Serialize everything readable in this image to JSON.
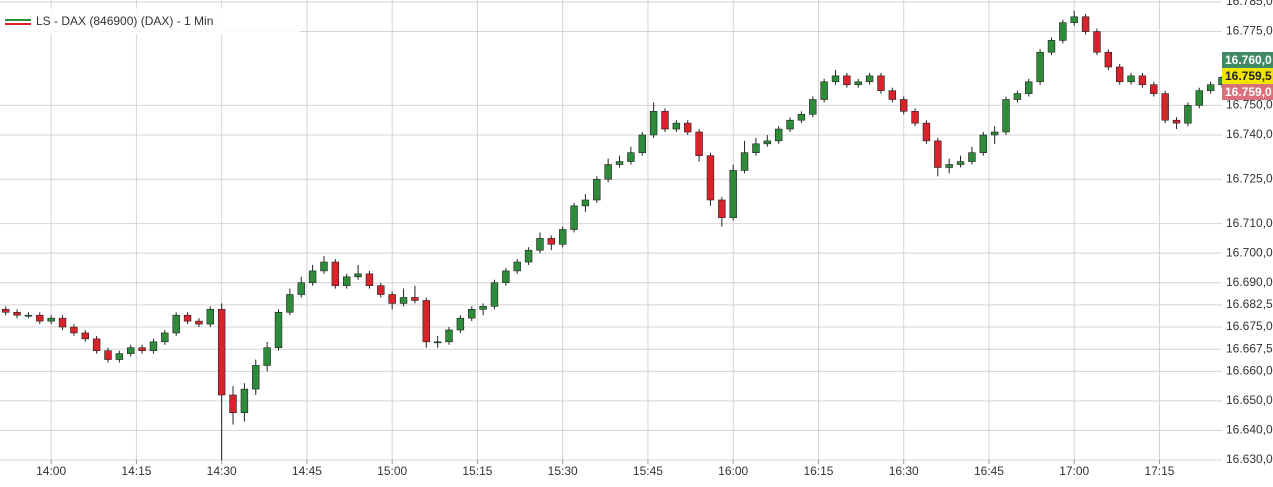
{
  "chart_data": {
    "type": "candlestick",
    "legend": "LS - DAX (846900) (DAX) - 1 Min",
    "up_color": "#2e8b3a",
    "down_color": "#d8232a",
    "grid": true,
    "xlim": [
      "13:51",
      "17:26"
    ],
    "xticks": [
      "14:00",
      "14:15",
      "14:30",
      "14:45",
      "15:00",
      "15:15",
      "15:30",
      "15:45",
      "16:00",
      "16:15",
      "16:30",
      "16:45",
      "17:00",
      "17:15"
    ],
    "ylim": [
      16630,
      16785
    ],
    "yticks": [
      {
        "value": 16630,
        "label": "16.630,0"
      },
      {
        "value": 16640,
        "label": "16.640,0"
      },
      {
        "value": 16650,
        "label": "16.650,0"
      },
      {
        "value": 16660,
        "label": "16.660,0"
      },
      {
        "value": 16667.5,
        "label": "16.667,5"
      },
      {
        "value": 16675,
        "label": "16.675,0"
      },
      {
        "value": 16682.5,
        "label": "16.682,5"
      },
      {
        "value": 16690,
        "label": "16.690,0"
      },
      {
        "value": 16700,
        "label": "16.700,0"
      },
      {
        "value": 16710,
        "label": "16.710,0"
      },
      {
        "value": 16725,
        "label": "16.725,0"
      },
      {
        "value": 16740,
        "label": "16.740,0"
      },
      {
        "value": 16750,
        "label": "16.750,0"
      },
      {
        "value": 16775,
        "label": "16.775,0"
      },
      {
        "value": 16785,
        "label": "16.785,0"
      }
    ],
    "price_labels": [
      {
        "value": 16760,
        "label": "16.760,0",
        "color": "#3d8a63",
        "text_color": "#ffffff"
      },
      {
        "value": 16759.5,
        "label": "16.759,5",
        "color": "#f2e600",
        "text_color": "#222222"
      },
      {
        "value": 16759,
        "label": "16.759,0",
        "color": "#d9707a",
        "text_color": "#ffffff"
      }
    ],
    "x": [
      "13:52",
      "13:54",
      "13:56",
      "13:58",
      "14:00",
      "14:02",
      "14:04",
      "14:06",
      "14:08",
      "14:10",
      "14:12",
      "14:14",
      "14:16",
      "14:18",
      "14:20",
      "14:22",
      "14:24",
      "14:26",
      "14:28",
      "14:30",
      "14:32",
      "14:34",
      "14:36",
      "14:38",
      "14:40",
      "14:42",
      "14:44",
      "14:46",
      "14:48",
      "14:50",
      "14:52",
      "14:54",
      "14:56",
      "14:58",
      "15:00",
      "15:02",
      "15:04",
      "15:06",
      "15:08",
      "15:10",
      "15:12",
      "15:14",
      "15:16",
      "15:18",
      "15:20",
      "15:22",
      "15:24",
      "15:26",
      "15:28",
      "15:30",
      "15:32",
      "15:34",
      "15:36",
      "15:38",
      "15:40",
      "15:42",
      "15:44",
      "15:46",
      "15:48",
      "15:50",
      "15:52",
      "15:54",
      "15:56",
      "15:58",
      "16:00",
      "16:02",
      "16:04",
      "16:06",
      "16:08",
      "16:10",
      "16:12",
      "16:14",
      "16:16",
      "16:18",
      "16:20",
      "16:22",
      "16:24",
      "16:26",
      "16:28",
      "16:30",
      "16:32",
      "16:34",
      "16:36",
      "16:38",
      "16:40",
      "16:42",
      "16:44",
      "16:46",
      "16:48",
      "16:50",
      "16:52",
      "16:54",
      "16:56",
      "16:58",
      "17:00",
      "17:02",
      "17:04",
      "17:06",
      "17:08",
      "17:10",
      "17:12",
      "17:14",
      "17:16",
      "17:18",
      "17:20",
      "17:22",
      "17:24",
      "17:26"
    ],
    "open": [
      16681,
      16680,
      16679,
      16679,
      16677,
      16678,
      16675,
      16673,
      16671,
      16667,
      16664,
      16666,
      16668,
      16667,
      16670,
      16673,
      16679,
      16677,
      16676,
      16681,
      16652,
      16646,
      16654,
      16662,
      16668,
      16680,
      16686,
      16690,
      16694,
      16697,
      16689,
      16692,
      16693,
      16689,
      16686,
      16683,
      16685,
      16684,
      16670,
      16670,
      16674,
      16678,
      16681,
      16682,
      16690,
      16694,
      16697,
      16701,
      16705,
      16703,
      16708,
      16716,
      16718,
      16725,
      16730,
      16731,
      16734,
      16740,
      16748,
      16742,
      16744,
      16741,
      16733,
      16718,
      16712,
      16728,
      16734,
      16737,
      16738,
      16742,
      16745,
      16747,
      16752,
      16758,
      16760,
      16757,
      16758,
      16760,
      16755,
      16752,
      16748,
      16744,
      16738,
      16729,
      16730,
      16731,
      16734,
      16740,
      16741,
      16752,
      16754,
      16758,
      16768,
      16772,
      16778,
      16780,
      16775,
      16768,
      16763,
      16758,
      16760,
      16757,
      16754,
      16745,
      16744,
      16750,
      16755,
      16757
    ],
    "high": [
      16682,
      16681,
      16680,
      16680,
      16679,
      16679,
      16676,
      16674,
      16672,
      16668,
      16667,
      16669,
      16669,
      16671,
      16674,
      16680,
      16680,
      16678,
      16682,
      16683,
      16655,
      16656,
      16664,
      16670,
      16681,
      16688,
      16692,
      16696,
      16699,
      16698,
      16693,
      16696,
      16694,
      16690,
      16687,
      16688,
      16689,
      16685,
      16672,
      16675,
      16679,
      16682,
      16683,
      16691,
      16695,
      16698,
      16702,
      16707,
      16706,
      16709,
      16717,
      16720,
      16726,
      16732,
      16733,
      16736,
      16741,
      16751,
      16749,
      16745,
      16745,
      16742,
      16734,
      16719,
      16730,
      16738,
      16739,
      16740,
      16743,
      16746,
      16748,
      16753,
      16759,
      16762,
      16761,
      16759,
      16761,
      16761,
      16756,
      16753,
      16749,
      16745,
      16739,
      16732,
      16733,
      16736,
      16741,
      16743,
      16753,
      16755,
      16759,
      16769,
      16773,
      16779,
      16782,
      16781,
      16776,
      16769,
      16764,
      16761,
      16761,
      16758,
      16755,
      16746,
      16751,
      16756,
      16758,
      16760
    ],
    "low": [
      16679,
      16678,
      16678,
      16676,
      16676,
      16674,
      16672,
      16670,
      16666,
      16663,
      16663,
      16665,
      16666,
      16666,
      16669,
      16672,
      16676,
      16675,
      16675,
      16630,
      16642,
      16643,
      16652,
      16660,
      16667,
      16679,
      16685,
      16689,
      16693,
      16688,
      16688,
      16691,
      16688,
      16685,
      16681,
      16682,
      16683,
      16668,
      16668,
      16669,
      16673,
      16677,
      16679,
      16681,
      16689,
      16693,
      16696,
      16700,
      16701,
      16702,
      16707,
      16714,
      16717,
      16724,
      16729,
      16730,
      16733,
      16739,
      16741,
      16741,
      16740,
      16731,
      16716,
      16709,
      16711,
      16727,
      16733,
      16736,
      16737,
      16741,
      16744,
      16746,
      16751,
      16757,
      16756,
      16756,
      16757,
      16754,
      16751,
      16747,
      16743,
      16737,
      16726,
      16727,
      16729,
      16730,
      16733,
      16737,
      16740,
      16751,
      16753,
      16757,
      16767,
      16771,
      16777,
      16774,
      16767,
      16762,
      16757,
      16757,
      16756,
      16753,
      16744,
      16742,
      16743,
      16749,
      16754,
      16756
    ],
    "close": [
      16680,
      16679,
      16679,
      16677,
      16678,
      16675,
      16673,
      16671,
      16667,
      16664,
      16666,
      16668,
      16667,
      16670,
      16673,
      16679,
      16677,
      16676,
      16681,
      16652,
      16646,
      16654,
      16662,
      16668,
      16680,
      16686,
      16690,
      16694,
      16697,
      16689,
      16692,
      16693,
      16689,
      16686,
      16683,
      16685,
      16684,
      16670,
      16670,
      16674,
      16678,
      16681,
      16682,
      16690,
      16694,
      16697,
      16701,
      16705,
      16703,
      16708,
      16716,
      16718,
      16725,
      16730,
      16731,
      16734,
      16740,
      16748,
      16742,
      16744,
      16741,
      16733,
      16718,
      16712,
      16728,
      16734,
      16737,
      16738,
      16742,
      16745,
      16747,
      16752,
      16758,
      16760,
      16757,
      16758,
      16760,
      16755,
      16752,
      16748,
      16744,
      16738,
      16729,
      16730,
      16731,
      16734,
      16740,
      16741,
      16752,
      16754,
      16758,
      16768,
      16772,
      16778,
      16780,
      16775,
      16768,
      16763,
      16758,
      16760,
      16757,
      16754,
      16745,
      16744,
      16750,
      16755,
      16757,
      16759.5
    ]
  }
}
